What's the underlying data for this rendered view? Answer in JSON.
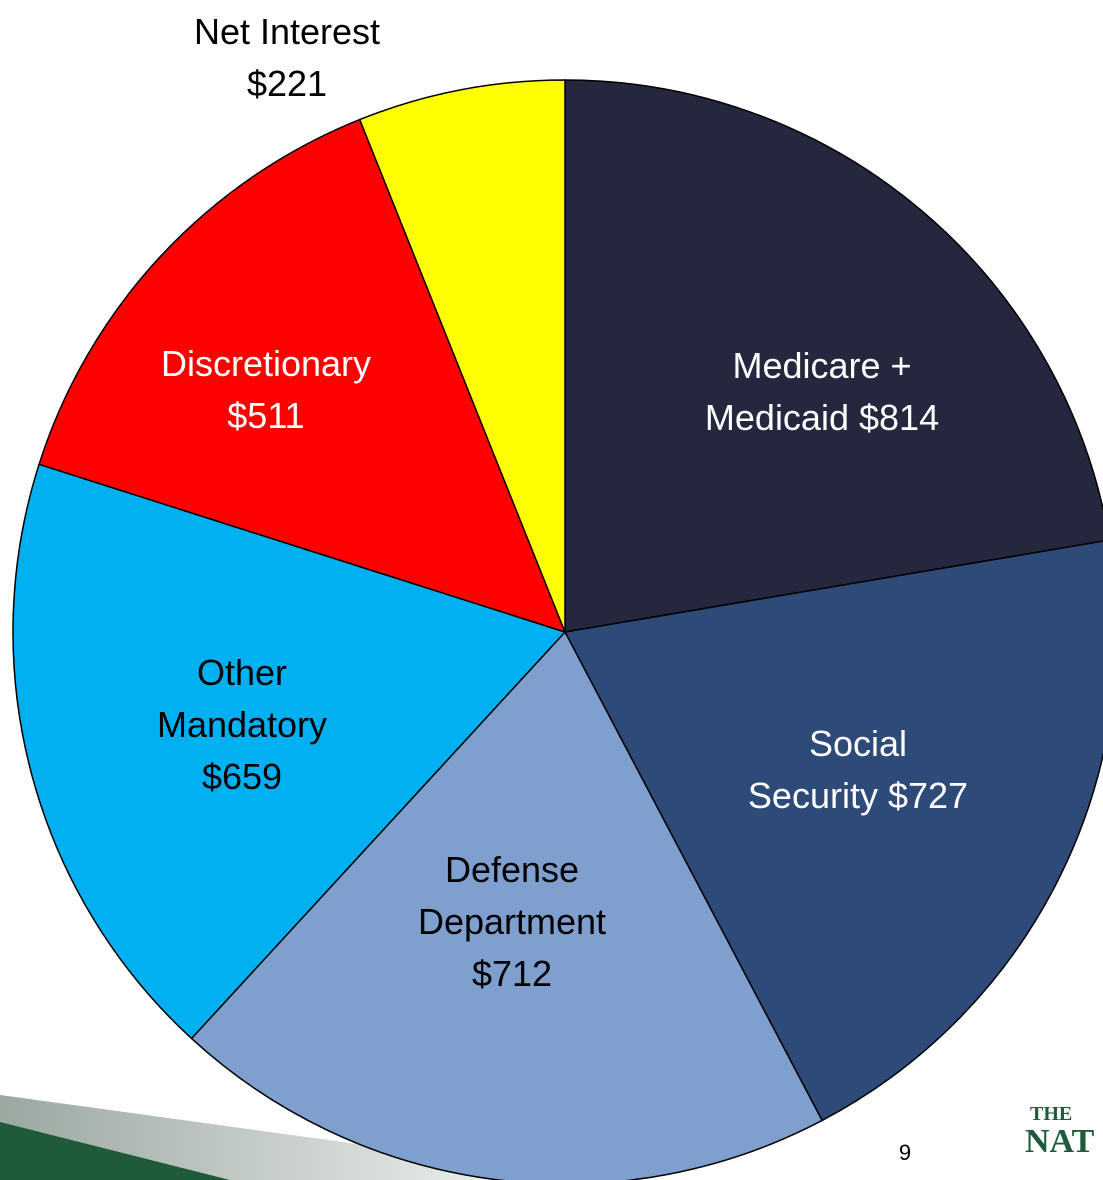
{
  "chart_data": {
    "type": "pie",
    "categories": [
      "Medicare + Medicaid",
      "Social Security",
      "Defense Department",
      "Other Mandatory",
      "Discretionary",
      "Net Interest"
    ],
    "values": [
      814,
      727,
      712,
      659,
      511,
      221
    ],
    "value_labels": [
      "$814",
      "$727",
      "$712",
      "$659",
      "$511",
      "$221"
    ],
    "colors": [
      "#25273f",
      "#2e4a78",
      "#7f9fcf",
      "#00b0f0",
      "#ff0000",
      "#ffff00"
    ]
  },
  "footer": {
    "page_number": "9",
    "logo_line1": "THE",
    "logo_line2": "NAT"
  }
}
